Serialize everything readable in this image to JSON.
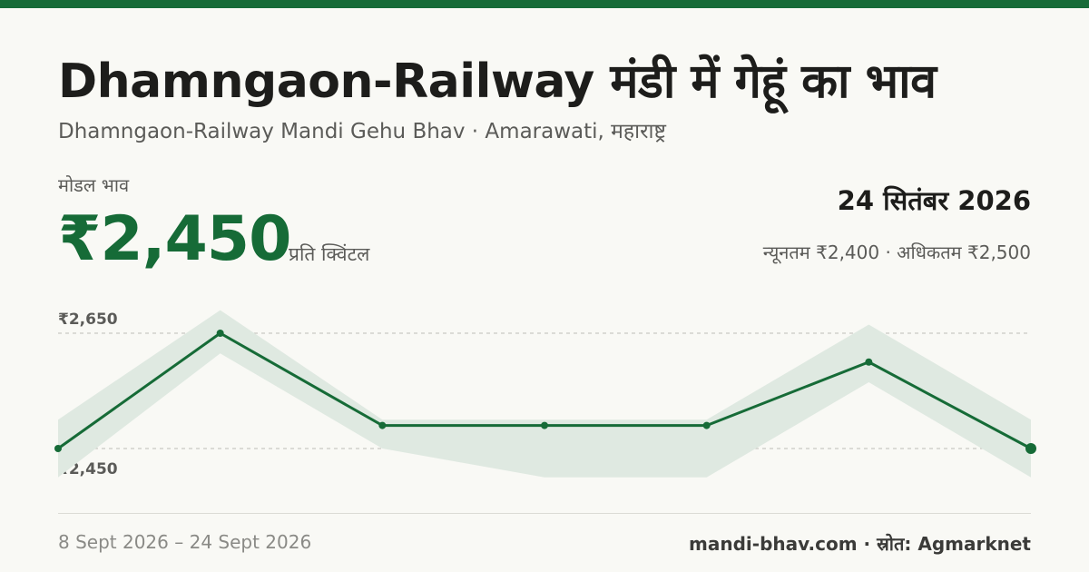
{
  "header": {
    "title": "Dhamngaon-Railway मंडी में गेहूं का भाव",
    "subtitle": "Dhamngaon-Railway Mandi Gehu Bhav · Amarawati, महाराष्ट्र"
  },
  "summary": {
    "modal_label": "मोडल भाव",
    "modal_price": "₹2,450",
    "unit": "प्रति क्विंटल",
    "date": "24 सितंबर 2026",
    "min_max": "न्यूनतम ₹2,400 · अधिकतम ₹2,500"
  },
  "footer": {
    "date_range": "8 Sept 2026 – 24 Sept 2026",
    "source": "mandi-bhav.com · स्रोत: Agmarknet"
  },
  "colors": {
    "accent": "#166b37",
    "band": "#dfe9e1"
  },
  "chart_data": {
    "type": "line",
    "x": [
      "8 Sept 2026",
      "",
      "",
      "",
      "",
      "",
      "24 Sept 2026"
    ],
    "series": [
      {
        "values": [
          2450,
          2650,
          2490,
          2490,
          2490,
          2600,
          2450
        ]
      }
    ],
    "band": {
      "min": [
        2400,
        2615,
        2450,
        2400,
        2400,
        2565,
        2400
      ],
      "max": [
        2500,
        2690,
        2500,
        2500,
        2500,
        2665,
        2500
      ]
    },
    "y_tick_labels": [
      "₹2,650",
      "₹2,450"
    ],
    "y_ticks": [
      2650,
      2450
    ],
    "grid": "dashed horizontal at ticks"
  }
}
